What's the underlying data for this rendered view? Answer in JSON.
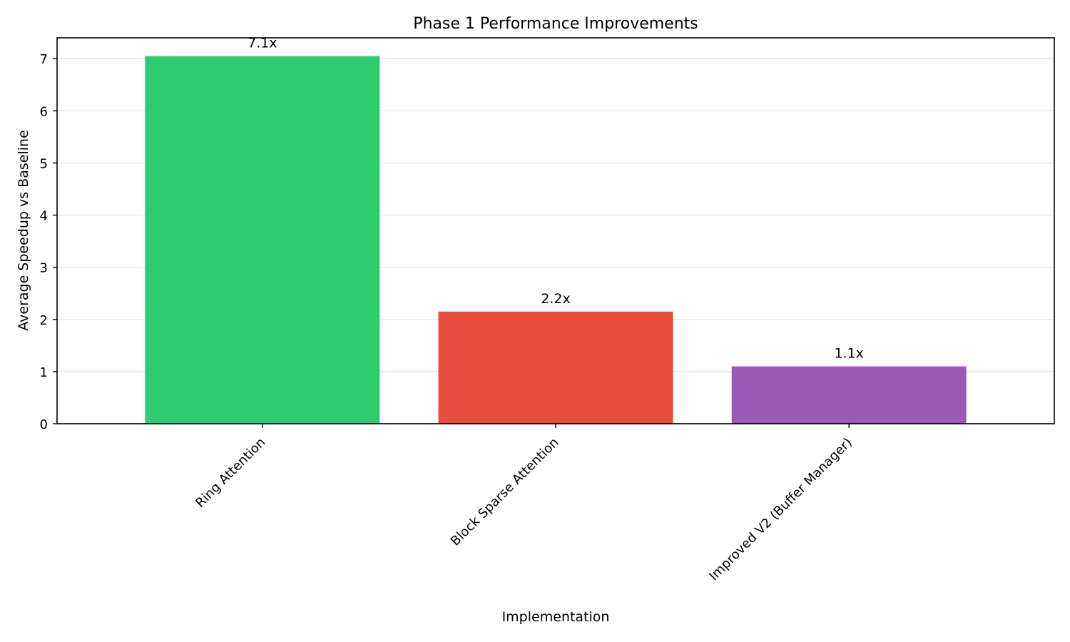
{
  "chart_data": {
    "type": "bar",
    "title": "Phase 1 Performance Improvements",
    "xlabel": "Implementation",
    "ylabel": "Average Speedup vs Baseline",
    "categories": [
      "Ring Attention",
      "Block Sparse Attention",
      "Improved V2 (Buffer Manager)"
    ],
    "values": [
      7.05,
      2.15,
      1.1
    ],
    "data_labels": [
      "7.1x",
      "2.2x",
      "1.1x"
    ],
    "colors": [
      "#2ecc71",
      "#e74c3c",
      "#9b59b6"
    ],
    "ylim": [
      0,
      7.4
    ],
    "yticks": [
      "0",
      "1",
      "2",
      "3",
      "4",
      "5",
      "6",
      "7"
    ],
    "grid": "horizontal",
    "legend": "none"
  }
}
